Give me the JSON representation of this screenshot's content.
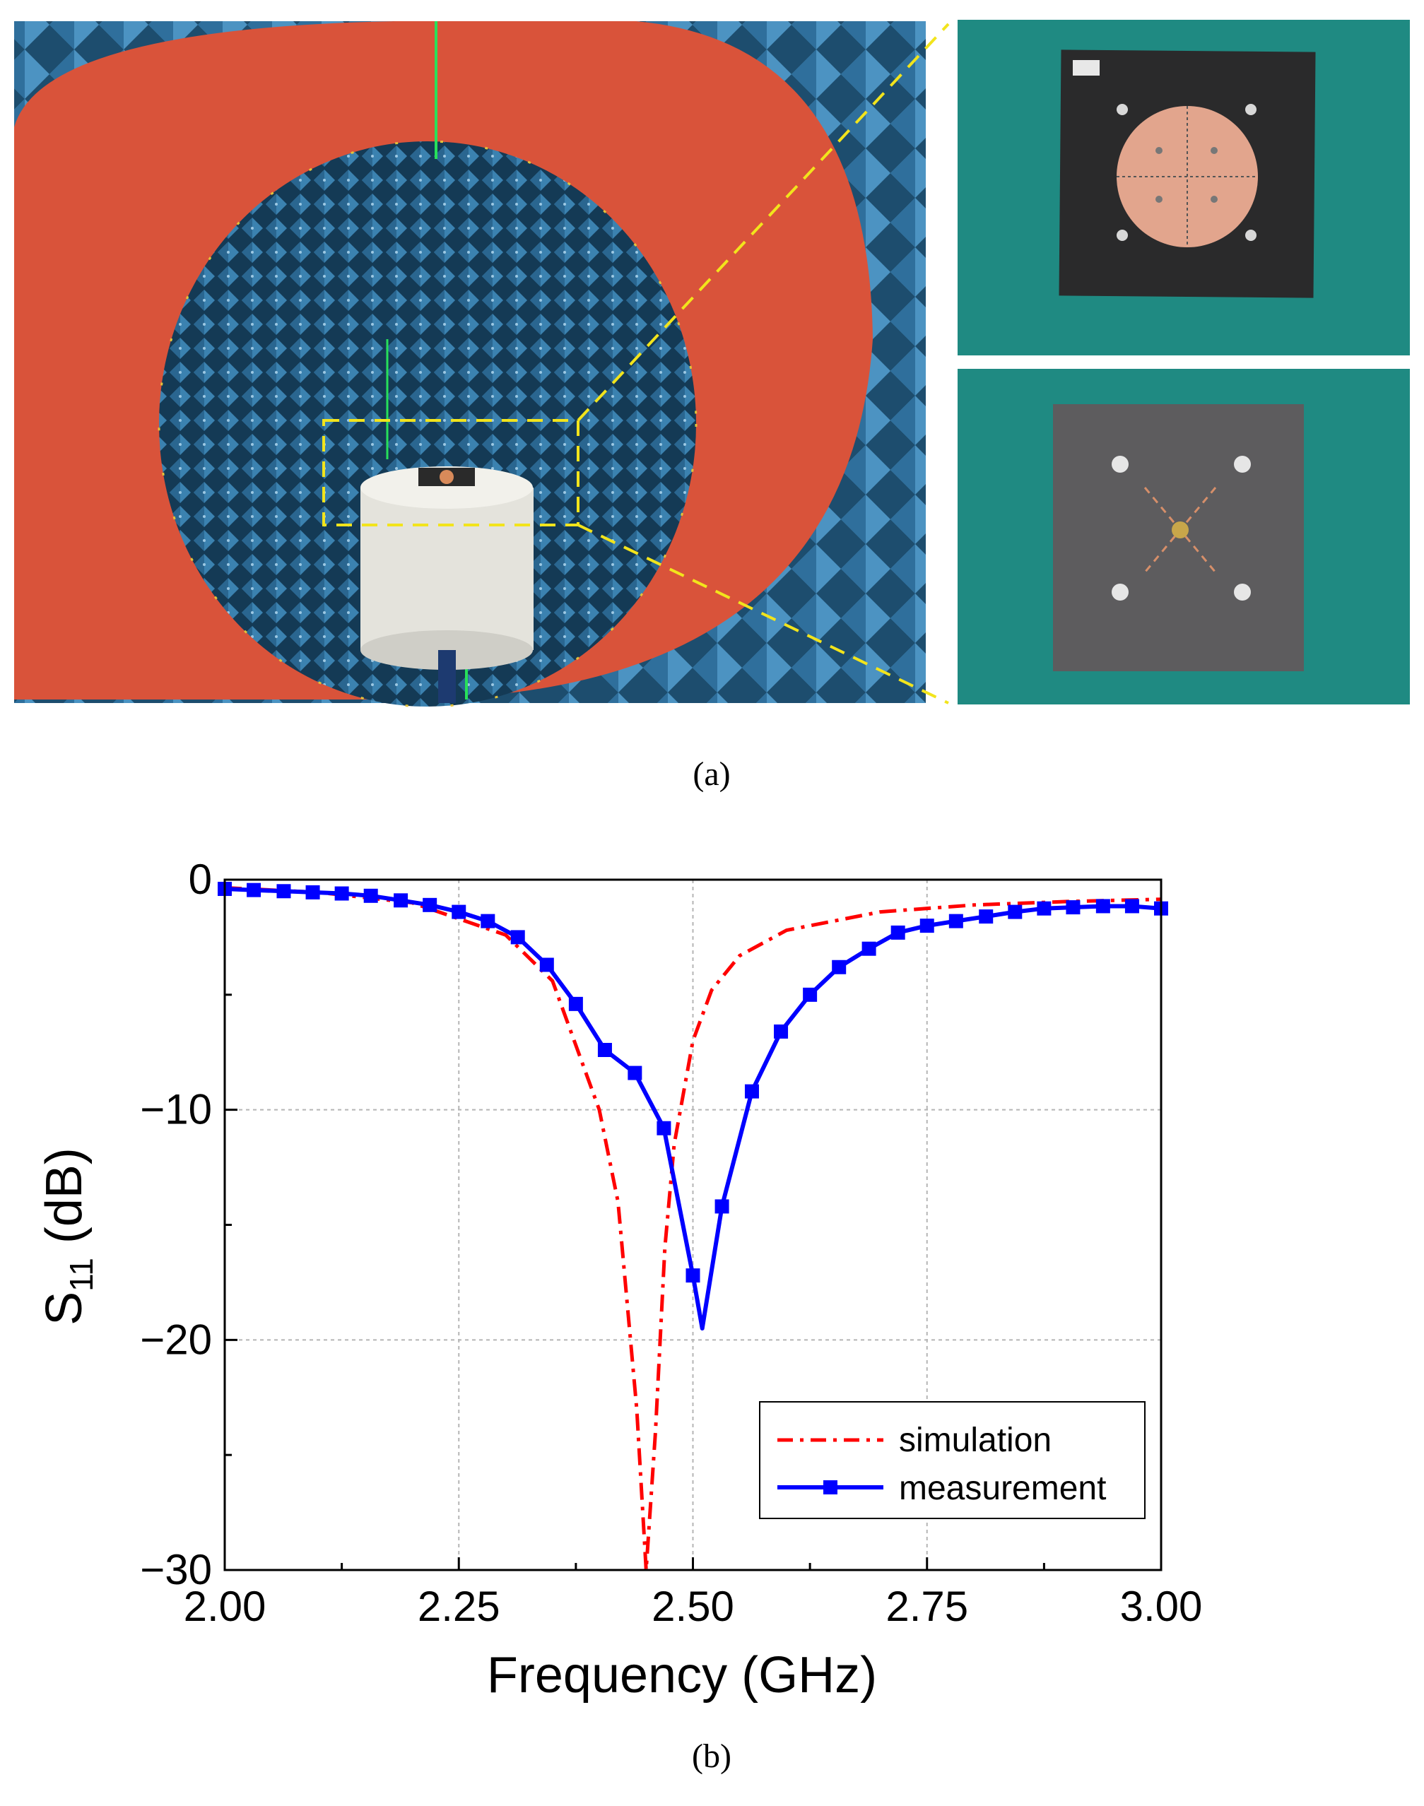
{
  "figure": {
    "caption_a": "(a)",
    "caption_b": "(b)"
  },
  "colors": {
    "chamber_ring": "#d9533a",
    "absorber": "#2f6f9c",
    "board_background": "#1f8a82",
    "simulation": "#ff0000",
    "measurement": "#0000ff",
    "callout": "#f2e41c"
  },
  "chart_data": {
    "type": "line",
    "xlabel": "Frequency (GHz)",
    "ylabel": "S",
    "ylabel_sub": "11",
    "ylabel_unit": " (dB)",
    "xlim": [
      2.0,
      3.0
    ],
    "ylim": [
      -30,
      0
    ],
    "xticks": [
      "2.00",
      "2.25",
      "2.50",
      "2.75",
      "3.00"
    ],
    "yticks": [
      "0",
      "−10",
      "−20",
      "−30"
    ],
    "grid": true,
    "legend_position": "lower-right",
    "series": [
      {
        "name": "simulation",
        "style": "dash-dot",
        "color": "#ff0000",
        "x": [
          2.0,
          2.1,
          2.2,
          2.3,
          2.35,
          2.4,
          2.42,
          2.44,
          2.45,
          2.46,
          2.47,
          2.48,
          2.5,
          2.52,
          2.55,
          2.6,
          2.7,
          2.8,
          2.9,
          3.0
        ],
        "y": [
          -0.35,
          -0.55,
          -1.0,
          -2.4,
          -4.4,
          -10.0,
          -14.0,
          -23.0,
          -30.0,
          -24.0,
          -16.0,
          -11.5,
          -7.0,
          -4.8,
          -3.3,
          -2.2,
          -1.4,
          -1.1,
          -0.95,
          -0.85
        ]
      },
      {
        "name": "measurement",
        "style": "solid-square-markers",
        "color": "#0000ff",
        "x": [
          2.0,
          2.031,
          2.063,
          2.094,
          2.125,
          2.156,
          2.188,
          2.219,
          2.25,
          2.281,
          2.313,
          2.344,
          2.375,
          2.406,
          2.438,
          2.469,
          2.5,
          2.51,
          2.531,
          2.563,
          2.594,
          2.625,
          2.656,
          2.688,
          2.719,
          2.75,
          2.781,
          2.813,
          2.844,
          2.875,
          2.906,
          2.938,
          2.969,
          3.0
        ],
        "y": [
          -0.4,
          -0.45,
          -0.5,
          -0.55,
          -0.6,
          -0.7,
          -0.9,
          -1.1,
          -1.4,
          -1.8,
          -2.5,
          -3.7,
          -5.4,
          -7.4,
          -8.4,
          -10.8,
          -17.2,
          -19.5,
          -14.2,
          -9.2,
          -6.6,
          -5.0,
          -3.8,
          -3.0,
          -2.3,
          -2.0,
          -1.8,
          -1.6,
          -1.4,
          -1.25,
          -1.2,
          -1.15,
          -1.15,
          -1.25
        ]
      }
    ]
  }
}
